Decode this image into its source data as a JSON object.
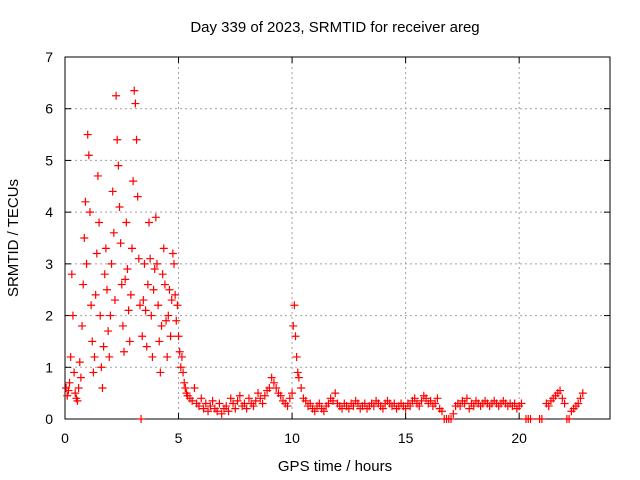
{
  "chart_data": {
    "type": "scatter",
    "title": "Day 339 of 2023, SRMTID for receiver areg",
    "xlabel": "GPS time / hours",
    "ylabel": "SRMTID / TECUs",
    "xlim": [
      0,
      24
    ],
    "ylim": [
      0,
      7
    ],
    "xticks": [
      0,
      5,
      10,
      15,
      20
    ],
    "yticks": [
      0,
      1,
      2,
      3,
      4,
      5,
      6,
      7
    ],
    "grid": true,
    "marker": "+",
    "color": "#ff0000",
    "series": [
      {
        "name": "SRMTID",
        "points": [
          [
            0.05,
            0.6
          ],
          [
            0.1,
            0.45
          ],
          [
            0.15,
            0.55
          ],
          [
            0.2,
            0.7
          ],
          [
            0.25,
            1.2
          ],
          [
            0.3,
            2.8
          ],
          [
            0.35,
            2.0
          ],
          [
            0.4,
            0.9
          ],
          [
            0.45,
            0.5
          ],
          [
            0.5,
            0.4
          ],
          [
            0.55,
            0.35
          ],
          [
            0.6,
            0.6
          ],
          [
            0.65,
            1.1
          ],
          [
            0.7,
            0.8
          ],
          [
            0.75,
            1.8
          ],
          [
            0.8,
            2.6
          ],
          [
            0.85,
            3.5
          ],
          [
            0.9,
            4.2
          ],
          [
            0.95,
            3.0
          ],
          [
            1.0,
            5.5
          ],
          [
            1.05,
            5.1
          ],
          [
            1.1,
            4.0
          ],
          [
            1.15,
            2.2
          ],
          [
            1.2,
            1.5
          ],
          [
            1.25,
            0.9
          ],
          [
            1.3,
            1.2
          ],
          [
            1.35,
            2.4
          ],
          [
            1.4,
            3.2
          ],
          [
            1.45,
            4.7
          ],
          [
            1.5,
            3.8
          ],
          [
            1.55,
            2.0
          ],
          [
            1.6,
            1.0
          ],
          [
            1.65,
            0.6
          ],
          [
            1.7,
            1.4
          ],
          [
            1.75,
            2.8
          ],
          [
            1.8,
            3.3
          ],
          [
            1.85,
            2.5
          ],
          [
            1.9,
            1.7
          ],
          [
            1.95,
            1.2
          ],
          [
            2.0,
            2.0
          ],
          [
            2.05,
            3.0
          ],
          [
            2.1,
            4.4
          ],
          [
            2.15,
            3.6
          ],
          [
            2.2,
            2.3
          ],
          [
            2.25,
            6.25
          ],
          [
            2.3,
            5.4
          ],
          [
            2.35,
            4.9
          ],
          [
            2.4,
            4.1
          ],
          [
            2.45,
            3.4
          ],
          [
            2.5,
            2.6
          ],
          [
            2.55,
            1.8
          ],
          [
            2.6,
            1.3
          ],
          [
            2.65,
            2.7
          ],
          [
            2.7,
            3.8
          ],
          [
            2.75,
            2.9
          ],
          [
            2.8,
            2.1
          ],
          [
            2.85,
            1.5
          ],
          [
            2.9,
            2.4
          ],
          [
            2.95,
            3.3
          ],
          [
            3.0,
            4.6
          ],
          [
            3.05,
            6.35
          ],
          [
            3.1,
            6.1
          ],
          [
            3.15,
            5.4
          ],
          [
            3.2,
            4.3
          ],
          [
            3.25,
            3.1
          ],
          [
            3.3,
            2.2
          ],
          [
            3.35,
            0.0
          ],
          [
            3.4,
            1.6
          ],
          [
            3.45,
            2.3
          ],
          [
            3.5,
            3.0
          ],
          [
            3.55,
            2.1
          ],
          [
            3.6,
            1.4
          ],
          [
            3.65,
            2.6
          ],
          [
            3.7,
            3.8
          ],
          [
            3.75,
            3.1
          ],
          [
            3.8,
            2.0
          ],
          [
            3.85,
            1.2
          ],
          [
            3.9,
            2.5
          ],
          [
            3.95,
            2.9
          ],
          [
            4.0,
            3.9
          ],
          [
            4.05,
            3.0
          ],
          [
            4.1,
            2.2
          ],
          [
            4.15,
            1.5
          ],
          [
            4.2,
            0.9
          ],
          [
            4.25,
            1.8
          ],
          [
            4.3,
            2.8
          ],
          [
            4.35,
            3.3
          ],
          [
            4.4,
            2.6
          ],
          [
            4.45,
            1.9
          ],
          [
            4.5,
            1.2
          ],
          [
            4.55,
            2.0
          ],
          [
            4.6,
            2.5
          ],
          [
            4.65,
            1.6
          ],
          [
            4.7,
            2.3
          ],
          [
            4.75,
            3.2
          ],
          [
            4.8,
            3.0
          ],
          [
            4.85,
            2.4
          ],
          [
            4.9,
            1.9
          ],
          [
            4.95,
            2.2
          ],
          [
            5.0,
            1.6
          ],
          [
            5.05,
            1.3
          ],
          [
            5.1,
            1.0
          ],
          [
            5.15,
            1.2
          ],
          [
            5.2,
            0.9
          ],
          [
            5.25,
            0.7
          ],
          [
            5.3,
            0.6
          ],
          [
            5.35,
            0.5
          ],
          [
            5.4,
            0.45
          ],
          [
            5.5,
            0.4
          ],
          [
            5.6,
            0.35
          ],
          [
            5.7,
            0.6
          ],
          [
            5.8,
            0.3
          ],
          [
            5.9,
            0.25
          ],
          [
            6.0,
            0.4
          ],
          [
            6.1,
            0.2
          ],
          [
            6.2,
            0.3
          ],
          [
            6.3,
            0.15
          ],
          [
            6.4,
            0.25
          ],
          [
            6.5,
            0.35
          ],
          [
            6.6,
            0.2
          ],
          [
            6.7,
            0.15
          ],
          [
            6.8,
            0.3
          ],
          [
            6.9,
            0.1
          ],
          [
            7.0,
            0.2
          ],
          [
            7.1,
            0.25
          ],
          [
            7.2,
            0.15
          ],
          [
            7.3,
            0.4
          ],
          [
            7.4,
            0.3
          ],
          [
            7.5,
            0.2
          ],
          [
            7.6,
            0.35
          ],
          [
            7.7,
            0.45
          ],
          [
            7.8,
            0.25
          ],
          [
            7.9,
            0.3
          ],
          [
            8.0,
            0.2
          ],
          [
            8.1,
            0.4
          ],
          [
            8.2,
            0.3
          ],
          [
            8.3,
            0.25
          ],
          [
            8.4,
            0.35
          ],
          [
            8.5,
            0.5
          ],
          [
            8.6,
            0.4
          ],
          [
            8.7,
            0.3
          ],
          [
            8.8,
            0.45
          ],
          [
            8.9,
            0.55
          ],
          [
            9.0,
            0.6
          ],
          [
            9.1,
            0.8
          ],
          [
            9.2,
            0.7
          ],
          [
            9.3,
            0.6
          ],
          [
            9.4,
            0.5
          ],
          [
            9.5,
            0.45
          ],
          [
            9.6,
            0.35
          ],
          [
            9.7,
            0.3
          ],
          [
            9.8,
            0.25
          ],
          [
            9.9,
            0.4
          ],
          [
            10.0,
            0.5
          ],
          [
            10.05,
            1.8
          ],
          [
            10.1,
            2.2
          ],
          [
            10.15,
            1.6
          ],
          [
            10.2,
            1.2
          ],
          [
            10.25,
            0.9
          ],
          [
            10.3,
            0.8
          ],
          [
            10.4,
            0.6
          ],
          [
            10.5,
            0.4
          ],
          [
            10.6,
            0.35
          ],
          [
            10.7,
            0.25
          ],
          [
            10.8,
            0.3
          ],
          [
            10.9,
            0.2
          ],
          [
            11.0,
            0.15
          ],
          [
            11.1,
            0.25
          ],
          [
            11.2,
            0.3
          ],
          [
            11.3,
            0.2
          ],
          [
            11.4,
            0.15
          ],
          [
            11.5,
            0.25
          ],
          [
            11.6,
            0.3
          ],
          [
            11.7,
            0.4
          ],
          [
            11.8,
            0.35
          ],
          [
            11.9,
            0.5
          ],
          [
            12.0,
            0.3
          ],
          [
            12.1,
            0.25
          ],
          [
            12.2,
            0.2
          ],
          [
            12.3,
            0.3
          ],
          [
            12.4,
            0.25
          ],
          [
            12.5,
            0.2
          ],
          [
            12.6,
            0.3
          ],
          [
            12.7,
            0.25
          ],
          [
            12.8,
            0.35
          ],
          [
            12.9,
            0.3
          ],
          [
            13.0,
            0.2
          ],
          [
            13.1,
            0.25
          ],
          [
            13.2,
            0.3
          ],
          [
            13.3,
            0.2
          ],
          [
            13.4,
            0.25
          ],
          [
            13.5,
            0.3
          ],
          [
            13.6,
            0.25
          ],
          [
            13.7,
            0.35
          ],
          [
            13.8,
            0.3
          ],
          [
            13.9,
            0.25
          ],
          [
            14.0,
            0.2
          ],
          [
            14.1,
            0.3
          ],
          [
            14.2,
            0.35
          ],
          [
            14.3,
            0.3
          ],
          [
            14.4,
            0.25
          ],
          [
            14.5,
            0.3
          ],
          [
            14.6,
            0.2
          ],
          [
            14.7,
            0.25
          ],
          [
            14.8,
            0.3
          ],
          [
            14.9,
            0.25
          ],
          [
            15.0,
            0.2
          ],
          [
            15.1,
            0.3
          ],
          [
            15.2,
            0.25
          ],
          [
            15.3,
            0.35
          ],
          [
            15.4,
            0.4
          ],
          [
            15.5,
            0.3
          ],
          [
            15.6,
            0.25
          ],
          [
            15.7,
            0.35
          ],
          [
            15.8,
            0.45
          ],
          [
            15.9,
            0.4
          ],
          [
            16.0,
            0.3
          ],
          [
            16.1,
            0.35
          ],
          [
            16.2,
            0.25
          ],
          [
            16.3,
            0.3
          ],
          [
            16.4,
            0.4
          ],
          [
            16.5,
            0.2
          ],
          [
            16.6,
            0.15
          ],
          [
            16.7,
            0.0
          ],
          [
            16.8,
            0.0
          ],
          [
            16.9,
            0.0
          ],
          [
            17.0,
            0.0
          ],
          [
            17.1,
            0.1
          ],
          [
            17.2,
            0.25
          ],
          [
            17.3,
            0.3
          ],
          [
            17.4,
            0.25
          ],
          [
            17.5,
            0.35
          ],
          [
            17.6,
            0.3
          ],
          [
            17.7,
            0.4
          ],
          [
            17.8,
            0.2
          ],
          [
            17.9,
            0.3
          ],
          [
            18.0,
            0.25
          ],
          [
            18.1,
            0.35
          ],
          [
            18.2,
            0.3
          ],
          [
            18.3,
            0.25
          ],
          [
            18.4,
            0.3
          ],
          [
            18.5,
            0.35
          ],
          [
            18.6,
            0.3
          ],
          [
            18.7,
            0.25
          ],
          [
            18.8,
            0.3
          ],
          [
            18.9,
            0.35
          ],
          [
            19.0,
            0.3
          ],
          [
            19.1,
            0.25
          ],
          [
            19.2,
            0.3
          ],
          [
            19.3,
            0.35
          ],
          [
            19.4,
            0.3
          ],
          [
            19.5,
            0.25
          ],
          [
            19.6,
            0.3
          ],
          [
            19.7,
            0.25
          ],
          [
            19.8,
            0.3
          ],
          [
            19.9,
            0.2
          ],
          [
            20.0,
            0.25
          ],
          [
            20.1,
            0.3
          ],
          [
            20.3,
            0.0
          ],
          [
            20.4,
            0.0
          ],
          [
            20.5,
            0.0
          ],
          [
            20.9,
            0.0
          ],
          [
            21.0,
            0.0
          ],
          [
            21.2,
            0.3
          ],
          [
            21.3,
            0.25
          ],
          [
            21.4,
            0.35
          ],
          [
            21.5,
            0.4
          ],
          [
            21.6,
            0.45
          ],
          [
            21.7,
            0.5
          ],
          [
            21.8,
            0.55
          ],
          [
            21.9,
            0.4
          ],
          [
            22.0,
            0.3
          ],
          [
            22.1,
            0.0
          ],
          [
            22.2,
            0.0
          ],
          [
            22.3,
            0.15
          ],
          [
            22.4,
            0.2
          ],
          [
            22.5,
            0.25
          ],
          [
            22.6,
            0.3
          ],
          [
            22.7,
            0.4
          ],
          [
            22.8,
            0.5
          ]
        ]
      }
    ]
  }
}
